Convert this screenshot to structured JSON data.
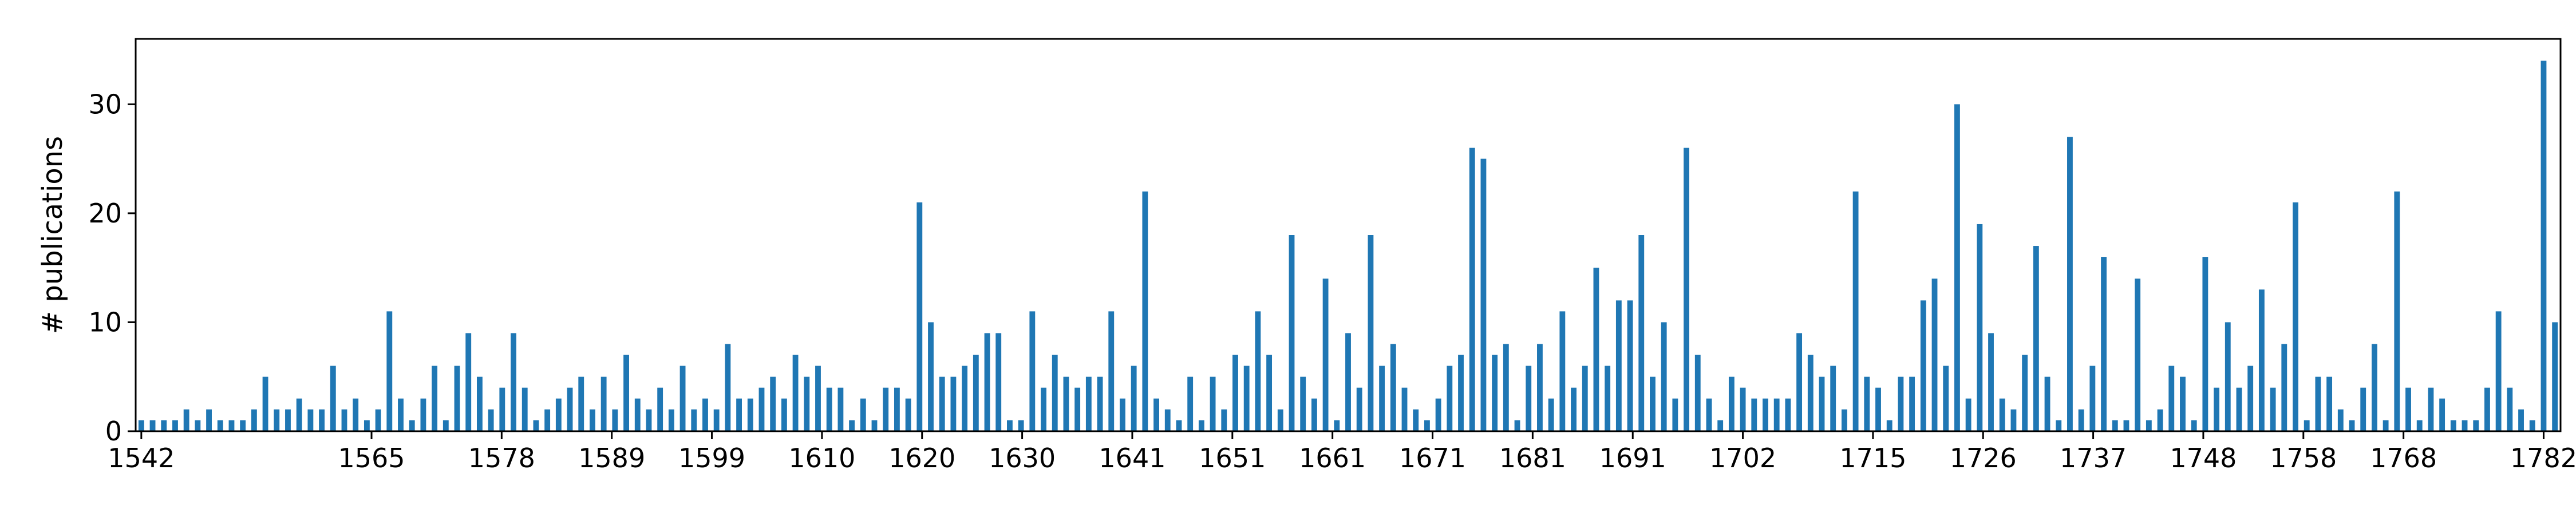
{
  "chart_data": {
    "type": "bar",
    "title": "",
    "xlabel": "",
    "ylabel": "# publications",
    "ylim": [
      0,
      36
    ],
    "yticks": [
      0,
      10,
      20,
      30
    ],
    "xticks": [
      1542,
      1565,
      1578,
      1589,
      1599,
      1610,
      1620,
      1630,
      1641,
      1651,
      1661,
      1671,
      1681,
      1691,
      1702,
      1715,
      1726,
      1737,
      1748,
      1758,
      1768,
      1782
    ],
    "bar_color": "#1f77b4",
    "grid": false,
    "legend": false,
    "values": [
      1,
      1,
      1,
      1,
      2,
      1,
      2,
      1,
      1,
      1,
      2,
      5,
      2,
      2,
      3,
      2,
      2,
      6,
      2,
      3,
      1,
      2,
      11,
      3,
      1,
      3,
      6,
      1,
      6,
      9,
      5,
      2,
      4,
      9,
      4,
      1,
      2,
      3,
      4,
      5,
      2,
      5,
      2,
      7,
      3,
      2,
      4,
      2,
      6,
      2,
      3,
      2,
      8,
      3,
      3,
      4,
      5,
      3,
      7,
      5,
      6,
      4,
      4,
      1,
      3,
      1,
      4,
      4,
      3,
      21,
      10,
      5,
      5,
      6,
      7,
      9,
      9,
      1,
      1,
      11,
      4,
      7,
      5,
      4,
      5,
      5,
      11,
      3,
      6,
      22,
      3,
      2,
      1,
      5,
      1,
      5,
      2,
      7,
      6,
      11,
      7,
      2,
      18,
      5,
      3,
      14,
      1,
      9,
      4,
      18,
      6,
      8,
      4,
      2,
      1,
      3,
      6,
      7,
      26,
      25,
      7,
      8,
      1,
      6,
      8,
      3,
      11,
      4,
      6,
      15,
      6,
      12,
      12,
      18,
      5,
      10,
      3,
      26,
      7,
      3,
      1,
      5,
      4,
      3,
      3,
      3,
      3,
      9,
      7,
      5,
      6,
      2,
      22,
      5,
      4,
      1,
      5,
      5,
      12,
      14,
      6,
      30,
      3,
      19,
      9,
      3,
      2,
      7,
      17,
      5,
      1,
      27,
      2,
      6,
      16,
      1,
      1,
      14,
      1,
      2,
      6,
      5,
      1,
      16,
      4,
      10,
      4,
      6,
      13,
      4,
      8,
      21,
      1,
      5,
      5,
      2,
      1,
      4,
      8,
      1,
      22,
      4,
      1,
      4,
      3,
      1,
      1,
      1,
      4,
      11,
      4,
      2,
      1,
      34,
      10
    ]
  }
}
